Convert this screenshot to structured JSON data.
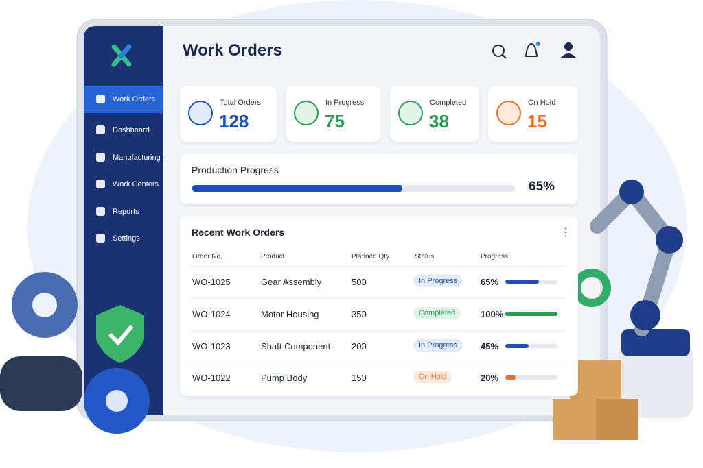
{
  "sidebar": {
    "nav": [
      "Work Orders",
      "Dashboard",
      "Manufacturing",
      "Work Centers",
      "Reports",
      "Settings"
    ]
  },
  "header": {
    "title": "Work Orders"
  },
  "stats": [
    {
      "label": "Total Orders",
      "value": 128,
      "color": "#1f4fb8",
      "bg": "#e3ebfa"
    },
    {
      "label": "In Progress",
      "value": 75,
      "color": "#2a9d55",
      "bg": "#e2f4e8"
    },
    {
      "label": "Completed",
      "value": 38,
      "color": "#2a9d55",
      "bg": "#e2f4e8"
    },
    {
      "label": "On Hold",
      "value": 15,
      "color": "#e8702a",
      "bg": "#fdeadc"
    }
  ],
  "production": {
    "title": "Production Progress",
    "progress": {
      "value": 65,
      "label": "65%"
    },
    "color": "#1f4fb8"
  },
  "table": {
    "title": "Recent Work Orders",
    "columns": [
      "Order No.",
      "Product",
      "Planned Qty",
      "Status",
      "Progress"
    ],
    "rows": [
      {
        "order": "WO-1025",
        "product": "Gear Assembly",
        "qty": 500,
        "status": "In Progress",
        "progress": {
          "value": 65,
          "label": "65%"
        },
        "color": "#1f4fb8",
        "bg": "#e3ebfa"
      },
      {
        "order": "WO-1024",
        "product": "Motor Housing",
        "qty": 350,
        "status": "Completed",
        "progress": {
          "value": 100,
          "label": "100%"
        },
        "color": "#2a9d55",
        "bg": "#e2f4e8"
      },
      {
        "order": "WO-1023",
        "product": "Shaft Component",
        "qty": 200,
        "status": "In Progress",
        "progress": {
          "value": 45,
          "label": "45%"
        },
        "color": "#1f4fb8",
        "bg": "#e3ebfa"
      },
      {
        "order": "WO-1022",
        "product": "Pump Body",
        "qty": 150,
        "status": "On Hold",
        "progress": {
          "value": 20,
          "label": "20%"
        },
        "color": "#e8702a",
        "bg": "#fdeadc"
      }
    ]
  }
}
